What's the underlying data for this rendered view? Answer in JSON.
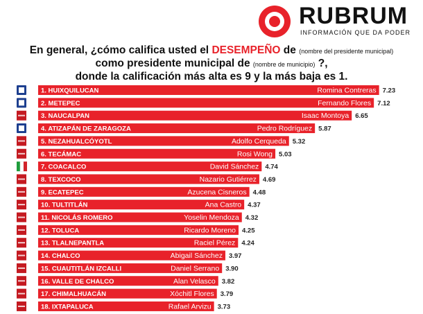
{
  "brand": {
    "name": "RUBRUM",
    "tagline": "INFORMACIÓN QUE DA PODER"
  },
  "question": {
    "part1": "En general, ¿cómo califica usted el ",
    "highlight": "DESEMPEÑO",
    "part2": " de ",
    "note1": "(nombre del presidente municipal)",
    "part3": "como presidente municipal de ",
    "note2": "(nombre de municipio)",
    "part4": " ?,",
    "part5": "donde la calificación más alta es 9 y la más baja es 1."
  },
  "colors": {
    "bar": "#e8222a",
    "bar_dark": "#c41a21",
    "pan": "#1d3f8f",
    "pri_green": "#1e9c3b",
    "pri_red": "#d2232a",
    "logo_red": "#e8222a"
  },
  "chart_data": {
    "type": "bar",
    "orientation": "horizontal",
    "categories": [
      "1. HUIXQUILUCAN",
      "2. METEPEC",
      "3. NAUCALPAN",
      "4. ATIZAPÁN DE ZARAGOZA",
      "5. NEZAHUALCÓYOTL",
      "6. TECÁMAC",
      "7. COACALCO",
      "8. TEXCOCO",
      "9. ECATEPEC",
      "10. TULTITLÁN",
      "11. NICOLÁS ROMERO",
      "12. TOLUCA",
      "13. TLALNEPANTLA",
      "14. CHALCO",
      "15. CUAUTITLÁN IZCALLI",
      "16. VALLE DE CHALCO",
      "17. CHIMALHUACÁN",
      "18. IXTAPALUCA"
    ],
    "names": [
      "Romina Contreras",
      "Fernando Flores",
      "Isaac Montoya",
      "Pedro Rodríguez",
      "Adolfo Cerqueda",
      "Rosi Wong",
      "David Sánchez",
      "Nazario Gutiérrez",
      "Azucena Cisneros",
      "Ana Castro",
      "Yoselin Mendoza",
      "Ricardo Moreno",
      "Raciel Pérez",
      "Abigail Sánchez",
      "Daniel Serrano",
      "Alan Velasco",
      "Xóchitl Flores",
      "Rafael Arvizu"
    ],
    "values": [
      7.23,
      7.12,
      6.65,
      5.87,
      5.32,
      5.03,
      4.74,
      4.69,
      4.48,
      4.37,
      4.32,
      4.25,
      4.24,
      3.97,
      3.9,
      3.82,
      3.79,
      3.73
    ],
    "value_labels": [
      "7.23",
      "7.12",
      "6.65",
      "5.87",
      "5.32",
      "5.03",
      "4.74",
      "4.69",
      "4.48",
      "4.37",
      "4.32",
      "4.25",
      "4.24",
      "3.97",
      "3.90",
      "3.82",
      "3.79",
      "3.73"
    ],
    "parties": [
      "PAN",
      "PAN",
      "MORENA",
      "PAN",
      "MORENA",
      "MORENA",
      "PRI",
      "MORENA",
      "MORENA",
      "MORENA",
      "MORENA",
      "MORENA",
      "MORENA",
      "MORENA",
      "MORENA",
      "MORENA",
      "MORENA",
      "MORENA"
    ],
    "xlim": [
      0,
      9
    ],
    "grid": false,
    "legend": "none"
  }
}
